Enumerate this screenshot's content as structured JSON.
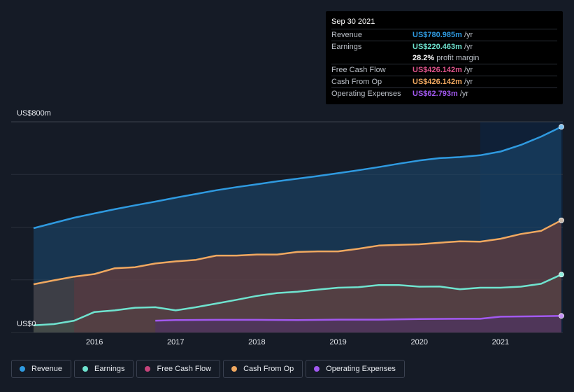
{
  "tooltip": {
    "date": "Sep 30 2021",
    "rows": [
      {
        "label": "Revenue",
        "value": "US$780.985m",
        "unit": "/yr",
        "color": "#2f9ae0"
      },
      {
        "label": "Earnings",
        "value": "US$220.463m",
        "unit": "/yr",
        "color": "#6fe3cf"
      },
      {
        "label": "",
        "value": "28.2%",
        "unit": "profit margin",
        "color": "#ffffff"
      },
      {
        "label": "Free Cash Flow",
        "value": "US$426.142m",
        "unit": "/yr",
        "color": "#e0548c"
      },
      {
        "label": "Cash From Op",
        "value": "US$426.142m",
        "unit": "/yr",
        "color": "#f0a860"
      },
      {
        "label": "Operating Expenses",
        "value": "US$62.793m",
        "unit": "/yr",
        "color": "#a259f0"
      }
    ]
  },
  "legend": [
    {
      "label": "Revenue",
      "color": "#2f9ae0"
    },
    {
      "label": "Earnings",
      "color": "#6fe3cf"
    },
    {
      "label": "Free Cash Flow",
      "color": "#c4437a"
    },
    {
      "label": "Cash From Op",
      "color": "#f0a860"
    },
    {
      "label": "Operating Expenses",
      "color": "#a259f0"
    }
  ],
  "chart_data": {
    "type": "area",
    "ylabel_top": "US$800m",
    "ylabel_bottom": "US$0",
    "ylim": [
      0,
      800
    ],
    "xlim": [
      2015.25,
      2021.75
    ],
    "x_ticks": [
      2016,
      2017,
      2018,
      2019,
      2020,
      2021
    ],
    "x_tick_labels": [
      "2016",
      "2017",
      "2018",
      "2019",
      "2020",
      "2021"
    ],
    "highlight_start": 2020.75,
    "grid": true,
    "series": [
      {
        "name": "Revenue",
        "color": "#2f9ae0",
        "points": [
          [
            2015.25,
            396
          ],
          [
            2015.5,
            416
          ],
          [
            2015.75,
            436
          ],
          [
            2016.0,
            452
          ],
          [
            2016.25,
            468
          ],
          [
            2016.5,
            483
          ],
          [
            2016.75,
            497
          ],
          [
            2017.0,
            512
          ],
          [
            2017.25,
            526
          ],
          [
            2017.5,
            540
          ],
          [
            2017.75,
            552
          ],
          [
            2018.0,
            563
          ],
          [
            2018.25,
            574
          ],
          [
            2018.5,
            584
          ],
          [
            2018.75,
            594
          ],
          [
            2019.0,
            605
          ],
          [
            2019.25,
            616
          ],
          [
            2019.5,
            628
          ],
          [
            2019.75,
            641
          ],
          [
            2020.0,
            653
          ],
          [
            2020.25,
            662
          ],
          [
            2020.5,
            666
          ],
          [
            2020.75,
            673
          ],
          [
            2021.0,
            687
          ],
          [
            2021.25,
            712
          ],
          [
            2021.5,
            744
          ],
          [
            2021.75,
            781
          ]
        ]
      },
      {
        "name": "Earnings",
        "color": "#6fe3cf",
        "points": [
          [
            2015.25,
            27
          ],
          [
            2015.5,
            32
          ],
          [
            2015.75,
            45
          ],
          [
            2016.0,
            78
          ],
          [
            2016.25,
            84
          ],
          [
            2016.5,
            94
          ],
          [
            2016.75,
            96
          ],
          [
            2017.0,
            84
          ],
          [
            2017.25,
            96
          ],
          [
            2017.5,
            110
          ],
          [
            2017.75,
            124
          ],
          [
            2018.0,
            139
          ],
          [
            2018.25,
            150
          ],
          [
            2018.5,
            155
          ],
          [
            2018.75,
            163
          ],
          [
            2019.0,
            170
          ],
          [
            2019.25,
            172
          ],
          [
            2019.5,
            180
          ],
          [
            2019.75,
            180
          ],
          [
            2020.0,
            174
          ],
          [
            2020.25,
            175
          ],
          [
            2020.5,
            164
          ],
          [
            2020.75,
            170
          ],
          [
            2021.0,
            170
          ],
          [
            2021.25,
            174
          ],
          [
            2021.5,
            185
          ],
          [
            2021.75,
            220
          ]
        ]
      },
      {
        "name": "Free Cash Flow",
        "color": "#c4437a",
        "fill_only": true,
        "points": [
          [
            2015.75,
            214
          ],
          [
            2016.0,
            222
          ],
          [
            2016.25,
            244
          ],
          [
            2016.5,
            248
          ],
          [
            2016.75,
            262
          ],
          [
            2017.0,
            270
          ],
          [
            2017.25,
            276
          ],
          [
            2017.5,
            292
          ],
          [
            2017.75,
            292
          ],
          [
            2018.0,
            296
          ],
          [
            2018.25,
            296
          ],
          [
            2018.5,
            306
          ],
          [
            2018.75,
            308
          ],
          [
            2019.0,
            308
          ],
          [
            2019.25,
            318
          ],
          [
            2019.5,
            330
          ],
          [
            2019.75,
            333
          ],
          [
            2020.0,
            335
          ],
          [
            2020.25,
            341
          ],
          [
            2020.5,
            346
          ],
          [
            2020.75,
            345
          ],
          [
            2021.0,
            356
          ],
          [
            2021.25,
            374
          ],
          [
            2021.5,
            386
          ],
          [
            2021.75,
            426
          ]
        ]
      },
      {
        "name": "Cash From Op",
        "color": "#f0a860",
        "points": [
          [
            2015.25,
            183
          ],
          [
            2015.5,
            198
          ],
          [
            2015.75,
            212
          ],
          [
            2016.0,
            222
          ],
          [
            2016.25,
            244
          ],
          [
            2016.5,
            248
          ],
          [
            2016.75,
            262
          ],
          [
            2017.0,
            270
          ],
          [
            2017.25,
            276
          ],
          [
            2017.5,
            292
          ],
          [
            2017.75,
            292
          ],
          [
            2018.0,
            296
          ],
          [
            2018.25,
            296
          ],
          [
            2018.5,
            306
          ],
          [
            2018.75,
            308
          ],
          [
            2019.0,
            308
          ],
          [
            2019.25,
            318
          ],
          [
            2019.5,
            330
          ],
          [
            2019.75,
            333
          ],
          [
            2020.0,
            335
          ],
          [
            2020.25,
            341
          ],
          [
            2020.5,
            346
          ],
          [
            2020.75,
            345
          ],
          [
            2021.0,
            356
          ],
          [
            2021.25,
            374
          ],
          [
            2021.5,
            386
          ],
          [
            2021.75,
            426
          ]
        ]
      },
      {
        "name": "Operating Expenses",
        "color": "#a259f0",
        "points": [
          [
            2016.75,
            45
          ],
          [
            2017.0,
            47
          ],
          [
            2017.5,
            48
          ],
          [
            2018.0,
            48
          ],
          [
            2018.5,
            47
          ],
          [
            2019.0,
            49
          ],
          [
            2019.5,
            49
          ],
          [
            2020.0,
            51
          ],
          [
            2020.5,
            52
          ],
          [
            2020.75,
            52
          ],
          [
            2021.0,
            60
          ],
          [
            2021.5,
            62
          ],
          [
            2021.75,
            63
          ]
        ]
      }
    ]
  }
}
